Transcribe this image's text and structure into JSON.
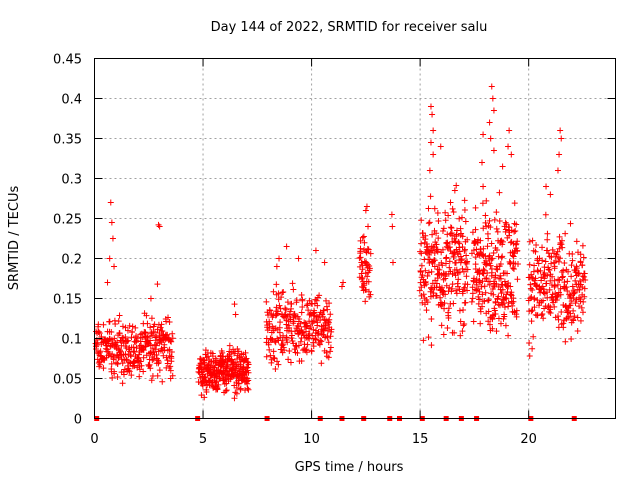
{
  "chart_data": {
    "type": "scatter",
    "title": "Day 144 of 2022, SRMTID for receiver salu",
    "xlabel": "GPS time / hours",
    "ylabel": "SRMTID / TECUs",
    "xlim": [
      0,
      24
    ],
    "ylim": [
      0,
      0.45
    ],
    "grid": true,
    "marker": "+",
    "color": "#ff0000",
    "x_ticks": [
      0,
      5,
      10,
      15,
      20
    ],
    "x_tick_labels": [
      "0",
      "5",
      "10",
      "15",
      "20"
    ],
    "y_ticks": [
      0,
      0.05,
      0.1,
      0.15,
      0.2,
      0.25,
      0.3,
      0.35,
      0.4,
      0.45
    ],
    "y_tick_labels": [
      "0",
      "0.05",
      "0.1",
      "0.15",
      "0.2",
      "0.25",
      "0.3",
      "0.35",
      "0.4",
      "0.45"
    ],
    "zero_points_x": [
      0.1,
      4.75,
      7.95,
      10.4,
      11.4,
      12.4,
      13.6,
      14.05,
      15.1,
      16.2,
      16.9,
      17.6,
      20.1,
      22.1
    ],
    "clusters": [
      {
        "x_start": 0.05,
        "x_end": 3.6,
        "y_min": 0.035,
        "y_max": 0.14,
        "count": 340
      },
      {
        "x_start": 4.8,
        "x_end": 7.1,
        "y_min": 0.02,
        "y_max": 0.1,
        "count": 300
      },
      {
        "x_start": 7.9,
        "x_end": 10.9,
        "y_min": 0.05,
        "y_max": 0.18,
        "count": 280
      },
      {
        "x_start": 12.2,
        "x_end": 12.7,
        "y_min": 0.12,
        "y_max": 0.25,
        "count": 50
      },
      {
        "x_start": 15.0,
        "x_end": 17.2,
        "y_min": 0.08,
        "y_max": 0.3,
        "count": 260
      },
      {
        "x_start": 17.4,
        "x_end": 19.5,
        "y_min": 0.07,
        "y_max": 0.3,
        "count": 260
      },
      {
        "x_start": 20.0,
        "x_end": 22.6,
        "y_min": 0.07,
        "y_max": 0.26,
        "count": 260
      }
    ],
    "outliers": [
      {
        "x": 0.75,
        "y": 0.27
      },
      {
        "x": 0.8,
        "y": 0.245
      },
      {
        "x": 0.85,
        "y": 0.225
      },
      {
        "x": 0.7,
        "y": 0.2
      },
      {
        "x": 0.9,
        "y": 0.19
      },
      {
        "x": 0.6,
        "y": 0.17
      },
      {
        "x": 2.6,
        "y": 0.15
      },
      {
        "x": 2.9,
        "y": 0.168
      },
      {
        "x": 2.95,
        "y": 0.242
      },
      {
        "x": 3.0,
        "y": 0.24
      },
      {
        "x": 6.45,
        "y": 0.143
      },
      {
        "x": 6.5,
        "y": 0.13
      },
      {
        "x": 8.4,
        "y": 0.19
      },
      {
        "x": 8.5,
        "y": 0.2
      },
      {
        "x": 8.85,
        "y": 0.215
      },
      {
        "x": 9.4,
        "y": 0.2
      },
      {
        "x": 10.2,
        "y": 0.21
      },
      {
        "x": 10.6,
        "y": 0.195
      },
      {
        "x": 11.4,
        "y": 0.165
      },
      {
        "x": 11.45,
        "y": 0.17
      },
      {
        "x": 12.5,
        "y": 0.26
      },
      {
        "x": 12.55,
        "y": 0.265
      },
      {
        "x": 12.6,
        "y": 0.24
      },
      {
        "x": 13.7,
        "y": 0.255
      },
      {
        "x": 13.72,
        "y": 0.24
      },
      {
        "x": 13.75,
        "y": 0.195
      },
      {
        "x": 15.5,
        "y": 0.39
      },
      {
        "x": 15.55,
        "y": 0.38
      },
      {
        "x": 15.6,
        "y": 0.36
      },
      {
        "x": 15.5,
        "y": 0.345
      },
      {
        "x": 15.6,
        "y": 0.33
      },
      {
        "x": 15.45,
        "y": 0.31
      },
      {
        "x": 15.95,
        "y": 0.34
      },
      {
        "x": 18.3,
        "y": 0.415
      },
      {
        "x": 18.35,
        "y": 0.4
      },
      {
        "x": 18.4,
        "y": 0.385
      },
      {
        "x": 18.2,
        "y": 0.37
      },
      {
        "x": 18.25,
        "y": 0.35
      },
      {
        "x": 18.4,
        "y": 0.335
      },
      {
        "x": 17.9,
        "y": 0.355
      },
      {
        "x": 17.85,
        "y": 0.32
      },
      {
        "x": 19.1,
        "y": 0.36
      },
      {
        "x": 19.05,
        "y": 0.34
      },
      {
        "x": 19.2,
        "y": 0.33
      },
      {
        "x": 18.8,
        "y": 0.315
      },
      {
        "x": 21.45,
        "y": 0.36
      },
      {
        "x": 21.5,
        "y": 0.35
      },
      {
        "x": 21.4,
        "y": 0.33
      },
      {
        "x": 21.35,
        "y": 0.31
      },
      {
        "x": 21.0,
        "y": 0.28
      },
      {
        "x": 20.8,
        "y": 0.29
      },
      {
        "x": 16.4,
        "y": 0.27
      },
      {
        "x": 16.6,
        "y": 0.285
      },
      {
        "x": 17.9,
        "y": 0.29
      }
    ]
  }
}
